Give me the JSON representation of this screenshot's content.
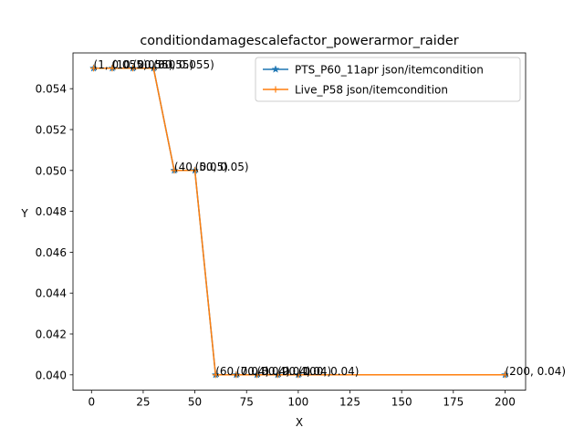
{
  "chart_data": {
    "type": "line",
    "title": "conditiondamagescalefactor_powerarmor_raider",
    "xlabel": "X",
    "ylabel": "Y",
    "xlim": [
      -8.95,
      209.95
    ],
    "ylim": [
      0.03925,
      0.05575
    ],
    "xticks": [
      0,
      25,
      50,
      75,
      100,
      125,
      150,
      175,
      200
    ],
    "yticks": [
      0.04,
      0.042,
      0.044,
      0.046,
      0.048,
      0.05,
      0.052,
      0.054
    ],
    "ytick_labels": [
      "0.040",
      "0.042",
      "0.044",
      "0.046",
      "0.048",
      "0.050",
      "0.052",
      "0.054"
    ],
    "legend_position": "top-right",
    "grid": false,
    "series": [
      {
        "name": "PTS_P60_11apr json/itemcondition",
        "color": "#1f77b4",
        "marker": "star",
        "x": [
          1,
          10,
          20,
          30,
          40,
          50,
          60,
          70,
          80,
          90,
          100,
          200
        ],
        "y": [
          0.055,
          0.055,
          0.055,
          0.055,
          0.05,
          0.05,
          0.04,
          0.04,
          0.04,
          0.04,
          0.04,
          0.04
        ]
      },
      {
        "name": "Live_P58 json/itemcondition",
        "color": "#ff7f0e",
        "marker": "plus",
        "x": [
          1,
          10,
          20,
          30,
          40,
          50,
          60,
          70,
          80,
          90,
          100,
          200
        ],
        "y": [
          0.055,
          0.055,
          0.055,
          0.055,
          0.05,
          0.05,
          0.04,
          0.04,
          0.04,
          0.04,
          0.04,
          0.04
        ]
      }
    ],
    "annotations": [
      {
        "text": "(1, 0.055)",
        "x": 1,
        "y": 0.055
      },
      {
        "text": "(10, 0.055)",
        "x": 10,
        "y": 0.055
      },
      {
        "text": "(20, 0.055)",
        "x": 20,
        "y": 0.055
      },
      {
        "text": "(30, 0.055)",
        "x": 30,
        "y": 0.055
      },
      {
        "text": "(40, 0.05)",
        "x": 40,
        "y": 0.05
      },
      {
        "text": "(50, 0.05)",
        "x": 50,
        "y": 0.05
      },
      {
        "text": "(60, 0.04)",
        "x": 60,
        "y": 0.04
      },
      {
        "text": "(70, 0.04)",
        "x": 70,
        "y": 0.04
      },
      {
        "text": "(80, 0.04)",
        "x": 80,
        "y": 0.04
      },
      {
        "text": "(90, 0.04)",
        "x": 90,
        "y": 0.04
      },
      {
        "text": "(100, 0.04)",
        "x": 100,
        "y": 0.04
      },
      {
        "text": "(200, 0.04)",
        "x": 200,
        "y": 0.04
      }
    ]
  }
}
